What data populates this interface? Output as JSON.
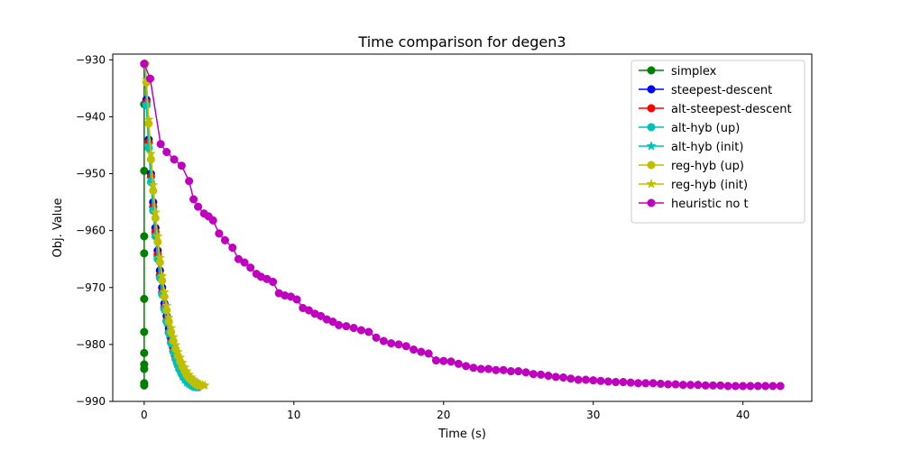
{
  "chart_data": {
    "type": "line",
    "title": "Time comparison for degen3",
    "xlabel": "Time (s)",
    "ylabel": "Obj. Value",
    "xlim": [
      -2.1,
      44.6
    ],
    "ylim": [
      -990,
      -929
    ],
    "xticks": [
      0,
      10,
      20,
      30,
      40
    ],
    "yticks": [
      -990,
      -980,
      -970,
      -960,
      -950,
      -940,
      -930
    ],
    "grid": false,
    "legend_position": "top-right",
    "series": [
      {
        "name": "simplex",
        "color": "#008000",
        "marker": "circle",
        "x": [
          0.0,
          0.0,
          0.0,
          0.0,
          0.0,
          0.0,
          0.0,
          0.0,
          0.0,
          0.0,
          0.0,
          0.0
        ],
        "y": [
          -930.7,
          -937.8,
          -949.5,
          -961.0,
          -964.0,
          -972.0,
          -977.8,
          -981.5,
          -983.5,
          -984.3,
          -986.8,
          -987.2
        ]
      },
      {
        "name": "steepest-descent",
        "color": "#0000ff",
        "marker": "circle",
        "x": [
          0.05,
          0.15,
          0.3,
          0.45,
          0.6,
          0.75,
          0.9,
          1.05,
          1.2,
          1.35,
          1.5,
          1.65,
          1.8,
          1.95,
          2.1,
          2.25,
          2.4,
          2.55,
          2.7,
          2.85,
          3.0,
          3.15,
          3.3,
          3.45
        ],
        "y": [
          -930.7,
          -937.0,
          -944.0,
          -950.0,
          -955.0,
          -959.5,
          -963.5,
          -967.0,
          -970.0,
          -972.8,
          -975.0,
          -977.2,
          -979.0,
          -980.6,
          -982.0,
          -983.2,
          -984.2,
          -985.1,
          -985.8,
          -986.4,
          -986.8,
          -987.1,
          -987.3,
          -987.4
        ]
      },
      {
        "name": "alt-steepest-descent",
        "color": "#ff0000",
        "marker": "circle",
        "x": [
          0.05,
          0.15,
          0.3,
          0.45,
          0.6,
          0.75,
          0.9,
          1.05,
          1.2,
          1.35,
          1.5,
          1.65,
          1.8,
          1.95,
          2.1,
          2.25,
          2.4,
          2.55,
          2.7,
          2.85,
          3.0,
          3.15,
          3.3,
          3.45,
          3.6
        ],
        "y": [
          -930.7,
          -937.5,
          -944.5,
          -950.5,
          -955.8,
          -960.2,
          -964.2,
          -967.8,
          -970.8,
          -973.5,
          -975.8,
          -977.8,
          -979.5,
          -981.0,
          -982.3,
          -983.4,
          -984.4,
          -985.2,
          -985.9,
          -986.4,
          -986.8,
          -987.1,
          -987.3,
          -987.4,
          -987.5
        ]
      },
      {
        "name": "alt-hyb (up)",
        "color": "#00bfbf",
        "marker": "circle",
        "x": [
          0.05,
          0.15,
          0.3,
          0.45,
          0.6,
          0.75,
          0.9,
          1.05,
          1.2,
          1.35,
          1.5,
          1.65,
          1.8,
          1.95,
          2.1,
          2.25,
          2.4,
          2.55,
          2.7,
          2.85,
          3.0,
          3.15,
          3.3,
          3.45
        ],
        "y": [
          -930.7,
          -938.0,
          -945.5,
          -951.5,
          -956.5,
          -961.0,
          -965.0,
          -968.3,
          -971.2,
          -973.8,
          -976.0,
          -978.0,
          -979.8,
          -981.3,
          -982.6,
          -983.7,
          -984.6,
          -985.4,
          -986.0,
          -986.5,
          -986.9,
          -987.2,
          -987.4,
          -987.5
        ]
      },
      {
        "name": "alt-hyb (init)",
        "color": "#00bfbf",
        "marker": "star",
        "x": [
          0.05,
          0.15,
          0.3,
          0.45,
          0.6,
          0.75,
          0.9,
          1.05,
          1.2,
          1.35,
          1.5,
          1.65,
          1.8,
          1.95,
          2.1,
          2.25,
          2.4,
          2.55,
          2.7,
          2.85,
          3.0,
          3.15,
          3.3,
          3.45,
          3.6
        ],
        "y": [
          -930.7,
          -937.8,
          -945.0,
          -951.0,
          -956.2,
          -960.8,
          -964.8,
          -968.2,
          -971.2,
          -973.9,
          -976.2,
          -978.2,
          -980.0,
          -981.5,
          -982.8,
          -983.9,
          -984.8,
          -985.6,
          -986.2,
          -986.7,
          -987.0,
          -987.2,
          -987.4,
          -987.5,
          -987.5
        ]
      },
      {
        "name": "reg-hyb (up)",
        "color": "#bfbf00",
        "marker": "circle",
        "x": [
          0.05,
          0.15,
          0.3,
          0.45,
          0.6,
          0.75,
          0.9,
          1.05,
          1.2,
          1.35,
          1.5,
          1.65,
          1.8,
          1.95,
          2.1,
          2.25,
          2.4,
          2.55,
          2.7,
          2.85,
          3.0,
          3.15,
          3.3,
          3.45,
          3.6,
          3.75
        ],
        "y": [
          -930.7,
          -934.0,
          -941.2,
          -947.5,
          -953.0,
          -957.8,
          -962.0,
          -965.6,
          -968.8,
          -971.6,
          -974.0,
          -976.0,
          -977.8,
          -979.4,
          -980.8,
          -982.0,
          -983.0,
          -983.9,
          -984.7,
          -985.4,
          -985.9,
          -986.3,
          -986.7,
          -987.0,
          -987.2,
          -987.3
        ]
      },
      {
        "name": "reg-hyb (init)",
        "color": "#bfbf00",
        "marker": "star",
        "x": [
          0.05,
          0.15,
          0.3,
          0.45,
          0.6,
          0.75,
          0.9,
          1.05,
          1.2,
          1.35,
          1.5,
          1.65,
          1.8,
          1.95,
          2.1,
          2.25,
          2.4,
          2.55,
          2.7,
          2.85,
          3.0,
          3.15,
          3.3,
          3.45,
          3.6,
          3.75,
          3.9,
          4.05
        ],
        "y": [
          -930.7,
          -933.5,
          -940.5,
          -946.5,
          -952.0,
          -956.8,
          -961.0,
          -964.8,
          -968.0,
          -970.8,
          -973.2,
          -975.3,
          -977.1,
          -978.7,
          -980.1,
          -981.3,
          -982.3,
          -983.2,
          -984.0,
          -984.7,
          -985.3,
          -985.8,
          -986.2,
          -986.5,
          -986.8,
          -987.0,
          -987.1,
          -987.2
        ]
      },
      {
        "name": "heuristic no t",
        "color": "#bf00bf",
        "marker": "circle",
        "x": [
          0.0,
          0.4,
          1.1,
          1.5,
          2.0,
          2.5,
          3.0,
          3.3,
          3.6,
          4.0,
          4.3,
          4.6,
          5.0,
          5.4,
          5.9,
          6.3,
          6.7,
          7.1,
          7.5,
          7.8,
          8.2,
          8.6,
          9.0,
          9.4,
          9.8,
          10.2,
          10.6,
          11.0,
          11.4,
          11.8,
          12.2,
          12.6,
          13.0,
          13.5,
          14.0,
          14.5,
          15.0,
          15.5,
          16.0,
          16.5,
          17.0,
          17.5,
          18.0,
          18.5,
          19.0,
          19.5,
          20.0,
          20.5,
          21.0,
          21.5,
          22.0,
          22.5,
          23.0,
          23.5,
          24.0,
          24.5,
          25.0,
          25.5,
          26.0,
          26.5,
          27.0,
          27.5,
          28.0,
          28.5,
          29.0,
          29.5,
          30.0,
          30.5,
          31.0,
          31.5,
          32.0,
          32.5,
          33.0,
          33.5,
          34.0,
          34.5,
          35.0,
          35.5,
          36.0,
          36.5,
          37.0,
          37.5,
          38.0,
          38.5,
          39.0,
          39.5,
          40.0,
          40.5,
          41.0,
          41.5,
          42.0,
          42.5
        ],
        "y": [
          -930.7,
          -933.3,
          -944.8,
          -946.2,
          -947.5,
          -948.6,
          -951.3,
          -954.5,
          -955.8,
          -957.0,
          -957.5,
          -958.2,
          -960.5,
          -961.7,
          -963.0,
          -965.0,
          -965.6,
          -966.5,
          -967.6,
          -968.1,
          -968.5,
          -969.0,
          -971.0,
          -971.4,
          -971.6,
          -972.1,
          -973.6,
          -974.0,
          -974.6,
          -975.0,
          -975.6,
          -976.0,
          -976.6,
          -976.8,
          -977.1,
          -977.5,
          -977.8,
          -978.8,
          -979.4,
          -979.8,
          -980.0,
          -980.3,
          -980.9,
          -981.3,
          -981.6,
          -982.8,
          -982.9,
          -983.0,
          -983.4,
          -983.8,
          -984.1,
          -984.3,
          -984.3,
          -984.5,
          -984.5,
          -984.7,
          -984.7,
          -984.9,
          -985.2,
          -985.3,
          -985.5,
          -985.7,
          -985.8,
          -986.0,
          -986.2,
          -986.2,
          -986.3,
          -986.4,
          -986.5,
          -986.6,
          -986.6,
          -986.7,
          -986.8,
          -986.8,
          -986.8,
          -986.9,
          -987.0,
          -987.0,
          -987.1,
          -987.1,
          -987.1,
          -987.2,
          -987.2,
          -987.2,
          -987.3,
          -987.3,
          -987.3,
          -987.3,
          -987.3,
          -987.3,
          -987.3,
          -987.3
        ]
      }
    ]
  }
}
